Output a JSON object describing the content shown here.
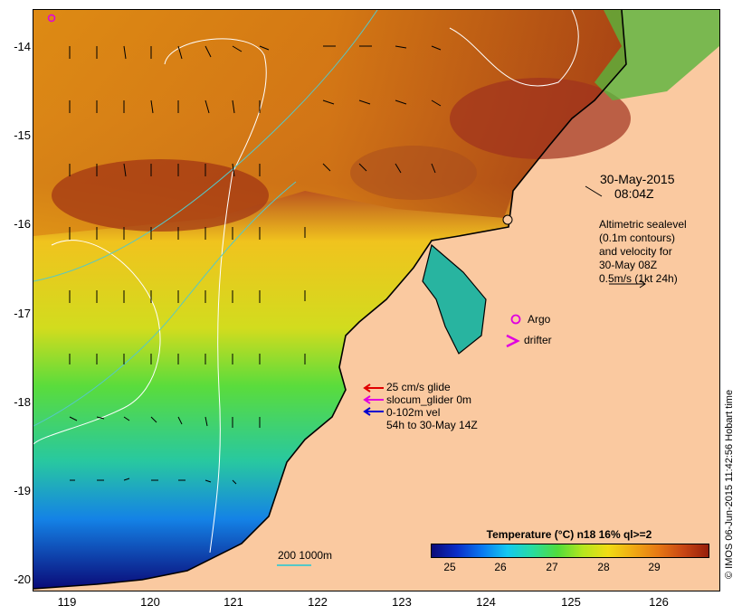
{
  "map": {
    "lat_ticks": [
      "-14",
      "-15",
      "-16",
      "-17",
      "-18",
      "-19",
      "-20"
    ],
    "lon_ticks": [
      "119",
      "120",
      "121",
      "122",
      "123",
      "124",
      "125",
      "126"
    ]
  },
  "annotations": {
    "date": "30-May-2015",
    "time": "08:04Z",
    "altimetry": [
      "Altimetric sealevel",
      "(0.1m contours)",
      "and velocity for",
      "30-May 08Z",
      "0.5m/s (1kt 24h)"
    ],
    "argo": "Argo",
    "drifter": "drifter",
    "legend": {
      "glide": "25 cm/s glide",
      "slocum": "slocum_glider 0m",
      "vel": "0-102m vel",
      "range": "54h to 30-May 14Z"
    },
    "scalebar": "200  1000m",
    "side_stamp": "© IMOS 06-Jun-2015 11:42:56 Hobart time"
  },
  "colorbar": {
    "title": "Temperature (°C) n18 16% ql>=2",
    "ticks": [
      "25",
      "26",
      "27",
      "28",
      "29"
    ]
  },
  "colors": {
    "land": "#fac9a0",
    "glide_arrow": "#e00000",
    "slocum_arrow": "#e000e0",
    "vel_arrow": "#0000d0",
    "argo_marker": "#e000e0",
    "contour": "#ffffff",
    "bathymetry": "#55c8c8"
  },
  "icons": {
    "argo": "circle-marker",
    "drifter": "chevron-marker",
    "arrows": "arrow-glyph"
  }
}
